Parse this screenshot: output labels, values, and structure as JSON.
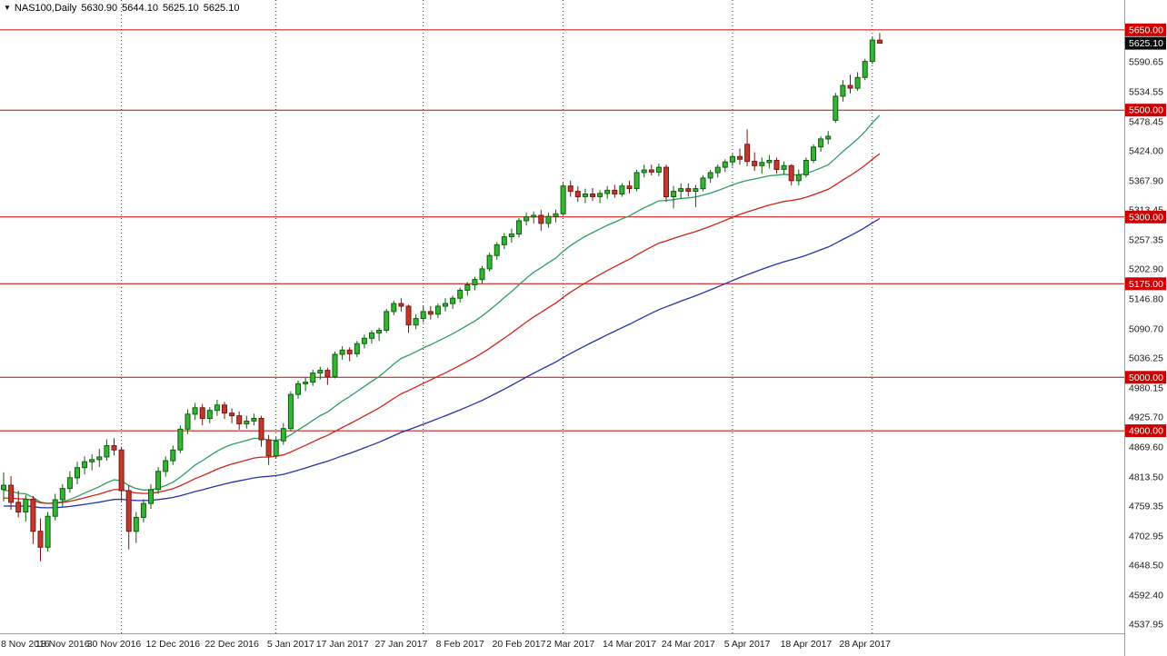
{
  "header": {
    "marker_glyph": "▼",
    "symbol_timeframe": "NAS100,Daily",
    "open": "5630.90",
    "high": "5644.10",
    "low": "5625.10",
    "close": "5625.10"
  },
  "chart_data": {
    "type": "candlestick",
    "symbol": "NAS100",
    "timeframe": "Daily",
    "last_ohlc": {
      "open": 5630.9,
      "high": 5644.1,
      "low": 5625.1,
      "close": 5625.1
    },
    "y_range": {
      "top": 5706,
      "bottom": 4521
    },
    "y_axis_labels": [
      "5590.65",
      "5534.55",
      "5478.45",
      "5424.00",
      "5367.90",
      "5313.45",
      "5257.35",
      "5202.90",
      "5146.80",
      "5090.70",
      "5036.25",
      "4980.15",
      "4925.70",
      "4869.60",
      "4813.50",
      "4759.35",
      "4702.95",
      "4648.50",
      "4592.40",
      "4537.95"
    ],
    "current_price": {
      "value": 5625.1,
      "label": "5625.10"
    },
    "horizontal_lines": [
      {
        "value": 5650.0,
        "label": "5650.00"
      },
      {
        "value": 5500.0,
        "label": "5500.00"
      },
      {
        "value": 5300.0,
        "label": "5300.00"
      },
      {
        "value": 5175.0,
        "label": "5175.00"
      },
      {
        "value": 5000.0,
        "label": "5000.00"
      },
      {
        "value": 4900.0,
        "label": "4900.00"
      }
    ],
    "x_labels": [
      {
        "t": "8 Nov 2016",
        "i": 0
      },
      {
        "t": "18 Nov 2016",
        "i": 8
      },
      {
        "t": "30 Nov 2016",
        "i": 15
      },
      {
        "t": "12 Dec 2016",
        "i": 23
      },
      {
        "t": "22 Dec 2016",
        "i": 31
      },
      {
        "t": "5 Jan 2017",
        "i": 39
      },
      {
        "t": "17 Jan 2017",
        "i": 46
      },
      {
        "t": "27 Jan 2017",
        "i": 54
      },
      {
        "t": "8 Feb 2017",
        "i": 62
      },
      {
        "t": "20 Feb 2017",
        "i": 70
      },
      {
        "t": "2 Mar 2017",
        "i": 77
      },
      {
        "t": "14 Mar 2017",
        "i": 85
      },
      {
        "t": "24 Mar 2017",
        "i": 93
      },
      {
        "t": "5 Apr 2017",
        "i": 101
      },
      {
        "t": "18 Apr 2017",
        "i": 109
      },
      {
        "t": "28 Apr 2017",
        "i": 117
      }
    ],
    "month_separators": [
      16,
      37,
      57,
      76,
      99,
      118
    ],
    "moving_averages": [
      {
        "name": "fast-ma",
        "period": 20,
        "seed_offset": 10,
        "color": "#2e9e62"
      },
      {
        "name": "mid-ma",
        "period": 40,
        "seed_offset": 25,
        "color": "#d02318"
      },
      {
        "name": "slow-ma",
        "period": 80,
        "seed_offset": 40,
        "color": "#2433a8"
      }
    ],
    "colors": {
      "up": {
        "fill": "#35b535",
        "stroke": "#0b5d0b"
      },
      "down": {
        "fill": "#c0392b",
        "stroke": "#7c150f"
      },
      "hline": "#cc0000",
      "hline_badge_bg": "#cc0000",
      "current_badge_bg": "#0a0a0a",
      "badge_text": "#ffffff",
      "separator": "#333333",
      "axis_text": "#1a1a1a",
      "axis_line": "#9a9a9a",
      "background": "#ffffff"
    },
    "candles": [
      [
        4790,
        4822,
        4768,
        4798
      ],
      [
        4798,
        4815,
        4752,
        4766
      ],
      [
        4766,
        4788,
        4738,
        4748
      ],
      [
        4748,
        4780,
        4730,
        4772
      ],
      [
        4772,
        4778,
        4688,
        4712
      ],
      [
        4712,
        4736,
        4656,
        4682
      ],
      [
        4682,
        4748,
        4674,
        4740
      ],
      [
        4740,
        4782,
        4732,
        4771
      ],
      [
        4771,
        4800,
        4758,
        4792
      ],
      [
        4792,
        4824,
        4784,
        4812
      ],
      [
        4812,
        4842,
        4800,
        4831
      ],
      [
        4831,
        4852,
        4818,
        4842
      ],
      [
        4842,
        4856,
        4826,
        4846
      ],
      [
        4846,
        4866,
        4832,
        4851
      ],
      [
        4851,
        4884,
        4844,
        4872
      ],
      [
        4872,
        4886,
        4854,
        4864
      ],
      [
        4864,
        4870,
        4768,
        4788
      ],
      [
        4788,
        4798,
        4678,
        4712
      ],
      [
        4712,
        4748,
        4690,
        4738
      ],
      [
        4738,
        4772,
        4728,
        4764
      ],
      [
        4764,
        4800,
        4754,
        4790
      ],
      [
        4790,
        4832,
        4782,
        4824
      ],
      [
        4824,
        4852,
        4814,
        4844
      ],
      [
        4844,
        4872,
        4836,
        4864
      ],
      [
        4864,
        4910,
        4858,
        4903
      ],
      [
        4903,
        4940,
        4894,
        4931
      ],
      [
        4931,
        4952,
        4920,
        4943
      ],
      [
        4943,
        4950,
        4910,
        4923
      ],
      [
        4923,
        4944,
        4914,
        4938
      ],
      [
        4938,
        4958,
        4928,
        4948
      ],
      [
        4948,
        4954,
        4922,
        4933
      ],
      [
        4933,
        4942,
        4914,
        4928
      ],
      [
        4928,
        4936,
        4902,
        4913
      ],
      [
        4913,
        4928,
        4904,
        4918
      ],
      [
        4918,
        4932,
        4910,
        4923
      ],
      [
        4923,
        4928,
        4870,
        4883
      ],
      [
        4883,
        4892,
        4836,
        4853
      ],
      [
        4853,
        4888,
        4848,
        4881
      ],
      [
        4881,
        4914,
        4874,
        4904
      ],
      [
        4904,
        4974,
        4900,
        4968
      ],
      [
        4968,
        4994,
        4960,
        4988
      ],
      [
        4988,
        5000,
        4974,
        4991
      ],
      [
        4991,
        5014,
        4984,
        5008
      ],
      [
        5008,
        5020,
        4996,
        5013
      ],
      [
        5013,
        5018,
        4986,
        5001
      ],
      [
        5001,
        5048,
        4998,
        5043
      ],
      [
        5043,
        5058,
        5033,
        5051
      ],
      [
        5051,
        5056,
        5030,
        5044
      ],
      [
        5044,
        5068,
        5038,
        5063
      ],
      [
        5063,
        5080,
        5054,
        5073
      ],
      [
        5073,
        5088,
        5063,
        5083
      ],
      [
        5083,
        5093,
        5068,
        5088
      ],
      [
        5088,
        5128,
        5083,
        5123
      ],
      [
        5123,
        5143,
        5116,
        5138
      ],
      [
        5138,
        5148,
        5123,
        5133
      ],
      [
        5133,
        5136,
        5083,
        5098
      ],
      [
        5098,
        5118,
        5090,
        5110
      ],
      [
        5110,
        5133,
        5103,
        5123
      ],
      [
        5123,
        5133,
        5108,
        5118
      ],
      [
        5118,
        5138,
        5111,
        5133
      ],
      [
        5133,
        5148,
        5123,
        5138
      ],
      [
        5138,
        5153,
        5128,
        5148
      ],
      [
        5148,
        5168,
        5140,
        5163
      ],
      [
        5163,
        5178,
        5153,
        5173
      ],
      [
        5173,
        5188,
        5163,
        5183
      ],
      [
        5183,
        5208,
        5176,
        5203
      ],
      [
        5203,
        5233,
        5198,
        5228
      ],
      [
        5228,
        5253,
        5220,
        5248
      ],
      [
        5248,
        5270,
        5240,
        5263
      ],
      [
        5263,
        5278,
        5252,
        5268
      ],
      [
        5268,
        5298,
        5262,
        5293
      ],
      [
        5293,
        5308,
        5284,
        5300
      ],
      [
        5300,
        5310,
        5288,
        5303
      ],
      [
        5303,
        5313,
        5274,
        5288
      ],
      [
        5288,
        5308,
        5280,
        5301
      ],
      [
        5301,
        5314,
        5290,
        5306
      ],
      [
        5306,
        5364,
        5302,
        5358
      ],
      [
        5358,
        5368,
        5338,
        5348
      ],
      [
        5348,
        5358,
        5328,
        5338
      ],
      [
        5338,
        5353,
        5326,
        5343
      ],
      [
        5343,
        5354,
        5330,
        5338
      ],
      [
        5338,
        5350,
        5326,
        5344
      ],
      [
        5344,
        5358,
        5334,
        5350
      ],
      [
        5350,
        5360,
        5336,
        5343
      ],
      [
        5343,
        5363,
        5338,
        5358
      ],
      [
        5358,
        5368,
        5344,
        5353
      ],
      [
        5353,
        5388,
        5348,
        5383
      ],
      [
        5383,
        5398,
        5374,
        5388
      ],
      [
        5388,
        5398,
        5378,
        5384
      ],
      [
        5384,
        5400,
        5376,
        5393
      ],
      [
        5393,
        5398,
        5328,
        5338
      ],
      [
        5338,
        5358,
        5316,
        5348
      ],
      [
        5348,
        5363,
        5334,
        5353
      ],
      [
        5353,
        5363,
        5338,
        5348
      ],
      [
        5348,
        5360,
        5318,
        5353
      ],
      [
        5353,
        5378,
        5348,
        5373
      ],
      [
        5373,
        5388,
        5364,
        5383
      ],
      [
        5383,
        5398,
        5374,
        5393
      ],
      [
        5393,
        5408,
        5384,
        5403
      ],
      [
        5403,
        5418,
        5394,
        5413
      ],
      [
        5413,
        5428,
        5398,
        5408
      ],
      [
        5436,
        5464,
        5395,
        5404
      ],
      [
        5404,
        5421,
        5386,
        5396
      ],
      [
        5396,
        5411,
        5381,
        5402
      ],
      [
        5402,
        5416,
        5391,
        5406
      ],
      [
        5406,
        5411,
        5381,
        5389
      ],
      [
        5389,
        5404,
        5379,
        5396
      ],
      [
        5396,
        5399,
        5359,
        5368
      ],
      [
        5368,
        5389,
        5359,
        5379
      ],
      [
        5379,
        5411,
        5374,
        5406
      ],
      [
        5406,
        5436,
        5401,
        5431
      ],
      [
        5431,
        5451,
        5422,
        5446
      ],
      [
        5446,
        5461,
        5436,
        5451
      ],
      [
        5481,
        5532,
        5476,
        5526
      ],
      [
        5526,
        5556,
        5516,
        5546
      ],
      [
        5546,
        5566,
        5531,
        5541
      ],
      [
        5541,
        5571,
        5536,
        5561
      ],
      [
        5561,
        5596,
        5556,
        5591
      ],
      [
        5591,
        5637,
        5586,
        5631
      ],
      [
        5630.9,
        5644.1,
        5625.1,
        5625.1
      ]
    ]
  }
}
